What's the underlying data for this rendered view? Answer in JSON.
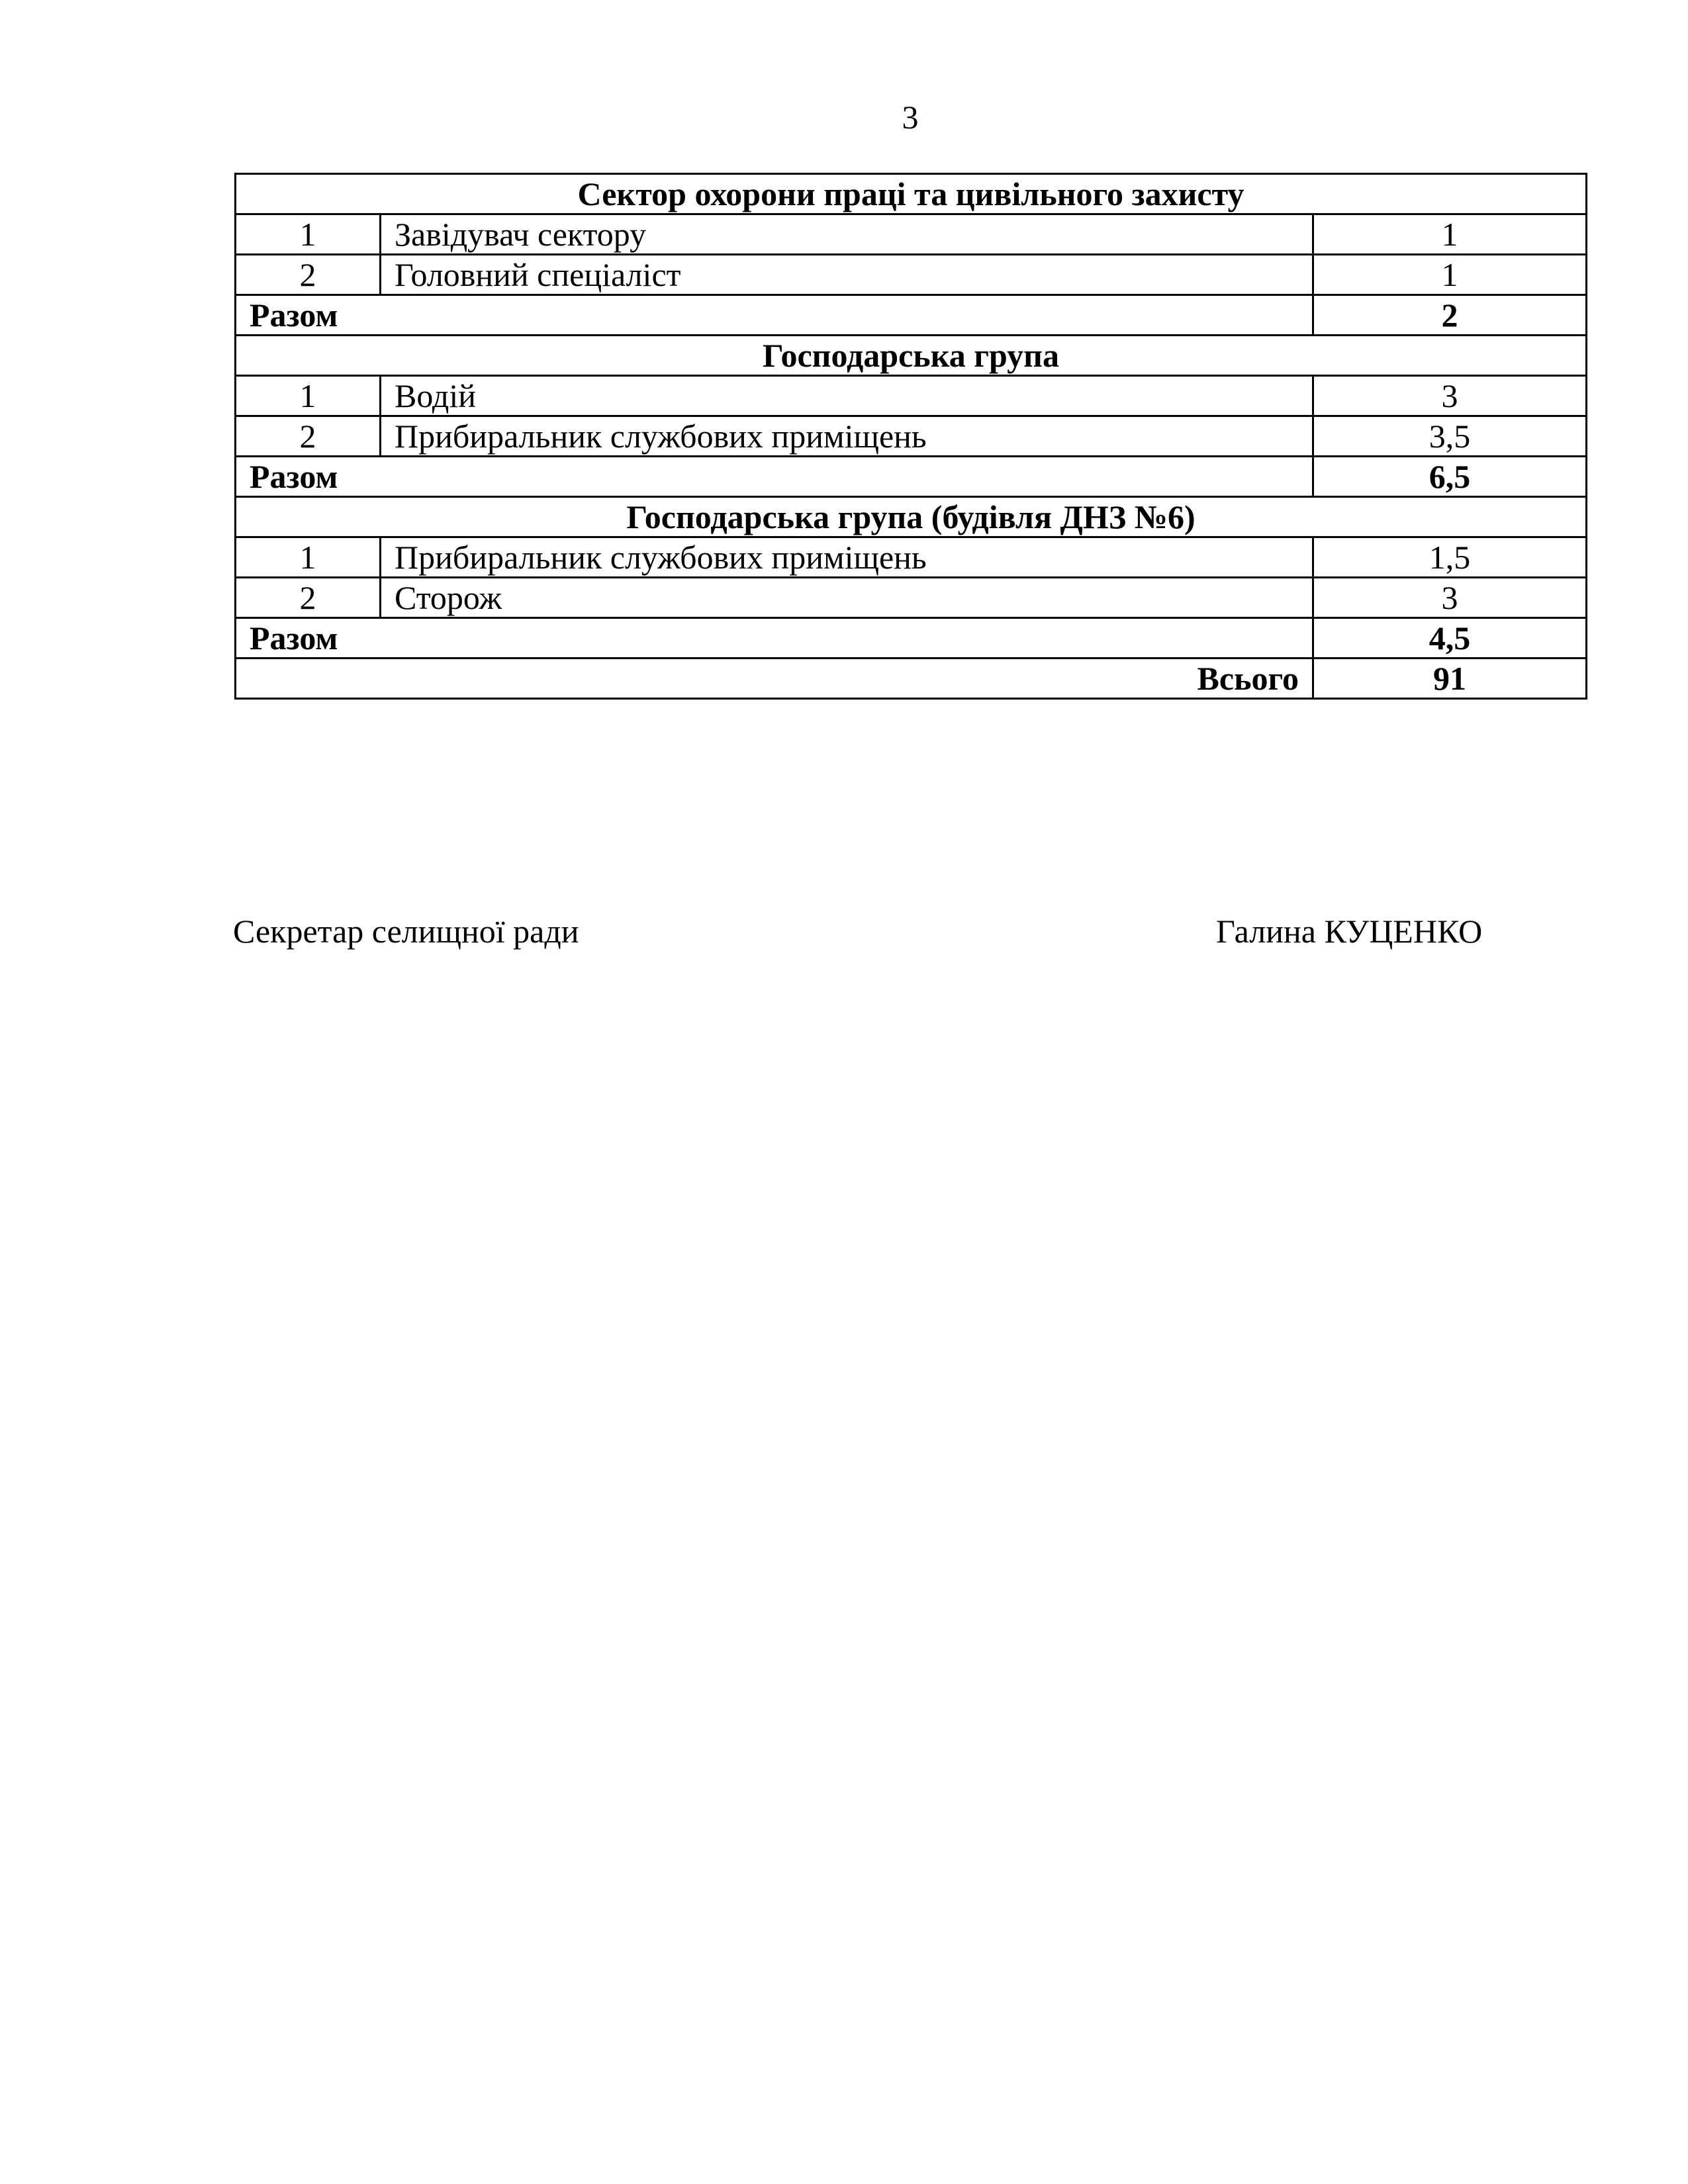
{
  "page_number": "3",
  "sections": [
    {
      "title": "Сектор охорони праці та цивільного захисту",
      "rows": [
        {
          "num": "1",
          "position": "Завідувач сектору",
          "count": "1"
        },
        {
          "num": "2",
          "position": "Головний спеціаліст",
          "count": "1"
        }
      ],
      "total_label": "Разом",
      "total": "2"
    },
    {
      "title": "Господарська група",
      "rows": [
        {
          "num": "1",
          "position": "Водій",
          "count": "3"
        },
        {
          "num": "2",
          "position": "Прибиральник службових приміщень",
          "count": "3,5"
        }
      ],
      "total_label": "Разом",
      "total": "6,5"
    },
    {
      "title": "Господарська група (будівля ДНЗ №6)",
      "rows": [
        {
          "num": "1",
          "position": "Прибиральник службових приміщень",
          "count": "1,5"
        },
        {
          "num": "2",
          "position": "Сторож",
          "count": "3"
        }
      ],
      "total_label": "Разом",
      "total": "4,5"
    }
  ],
  "grand_total": {
    "label": "Всього",
    "value": "91"
  },
  "signature": {
    "title": "Секретар селищної ради",
    "name": "Галина КУЦЕНКО"
  }
}
